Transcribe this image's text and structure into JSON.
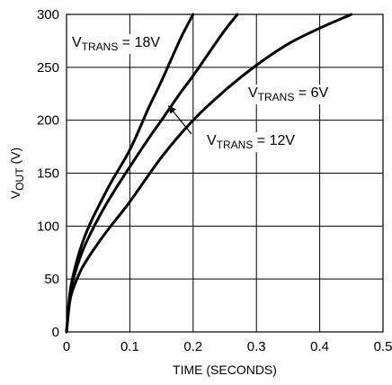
{
  "chart_data": {
    "type": "line",
    "title": "",
    "xlabel": "TIME (SECONDS)",
    "ylabel": {
      "main": "V",
      "sub": "OUT",
      "unit": " (V)"
    },
    "xlim": [
      0,
      0.5
    ],
    "ylim": [
      0,
      300
    ],
    "xticks": [
      0,
      0.1,
      0.2,
      0.3,
      0.4,
      0.5
    ],
    "yticks": [
      0,
      50,
      100,
      150,
      200,
      250,
      300
    ],
    "xtick_labels": [
      "0",
      "0.1",
      "0.2",
      "0.3",
      "0.4",
      "0.5"
    ],
    "ytick_labels": [
      "0",
      "50",
      "100",
      "150",
      "200",
      "250",
      "300"
    ],
    "grid": true,
    "legend": "none",
    "series": [
      {
        "name": "V_TRANS = 18V",
        "x": [
          0,
          0.005,
          0.01,
          0.02,
          0.03,
          0.04,
          0.05,
          0.07,
          0.1,
          0.13,
          0.15,
          0.18,
          0.2
        ],
        "y": [
          0,
          35,
          52,
          75,
          92,
          106,
          118,
          141,
          172,
          212,
          237,
          277,
          300
        ]
      },
      {
        "name": "V_TRANS = 12V",
        "x": [
          0,
          0.005,
          0.01,
          0.02,
          0.03,
          0.05,
          0.07,
          0.1,
          0.13,
          0.15,
          0.18,
          0.2,
          0.23,
          0.25,
          0.27
        ],
        "y": [
          0,
          33,
          48,
          68,
          83,
          107,
          128,
          156,
          183,
          200,
          226,
          242,
          268,
          285,
          300
        ]
      },
      {
        "name": "V_TRANS = 6V",
        "x": [
          0,
          0.005,
          0.01,
          0.02,
          0.03,
          0.05,
          0.07,
          0.1,
          0.15,
          0.2,
          0.25,
          0.3,
          0.35,
          0.4,
          0.45
        ],
        "y": [
          0,
          28,
          40,
          55,
          66,
          84,
          100,
          123,
          165,
          200,
          228,
          252,
          272,
          287,
          300
        ]
      }
    ],
    "annotations": [
      {
        "main": "V",
        "sub": "TRANS",
        "rest": " = 18V",
        "series": "V_TRANS = 18V"
      },
      {
        "main": "V",
        "sub": "TRANS",
        "rest": " = 6V",
        "series": "V_TRANS = 6V"
      },
      {
        "main": "V",
        "sub": "TRANS",
        "rest": " = 12V",
        "series": "V_TRANS = 12V",
        "arrow": true
      }
    ]
  }
}
